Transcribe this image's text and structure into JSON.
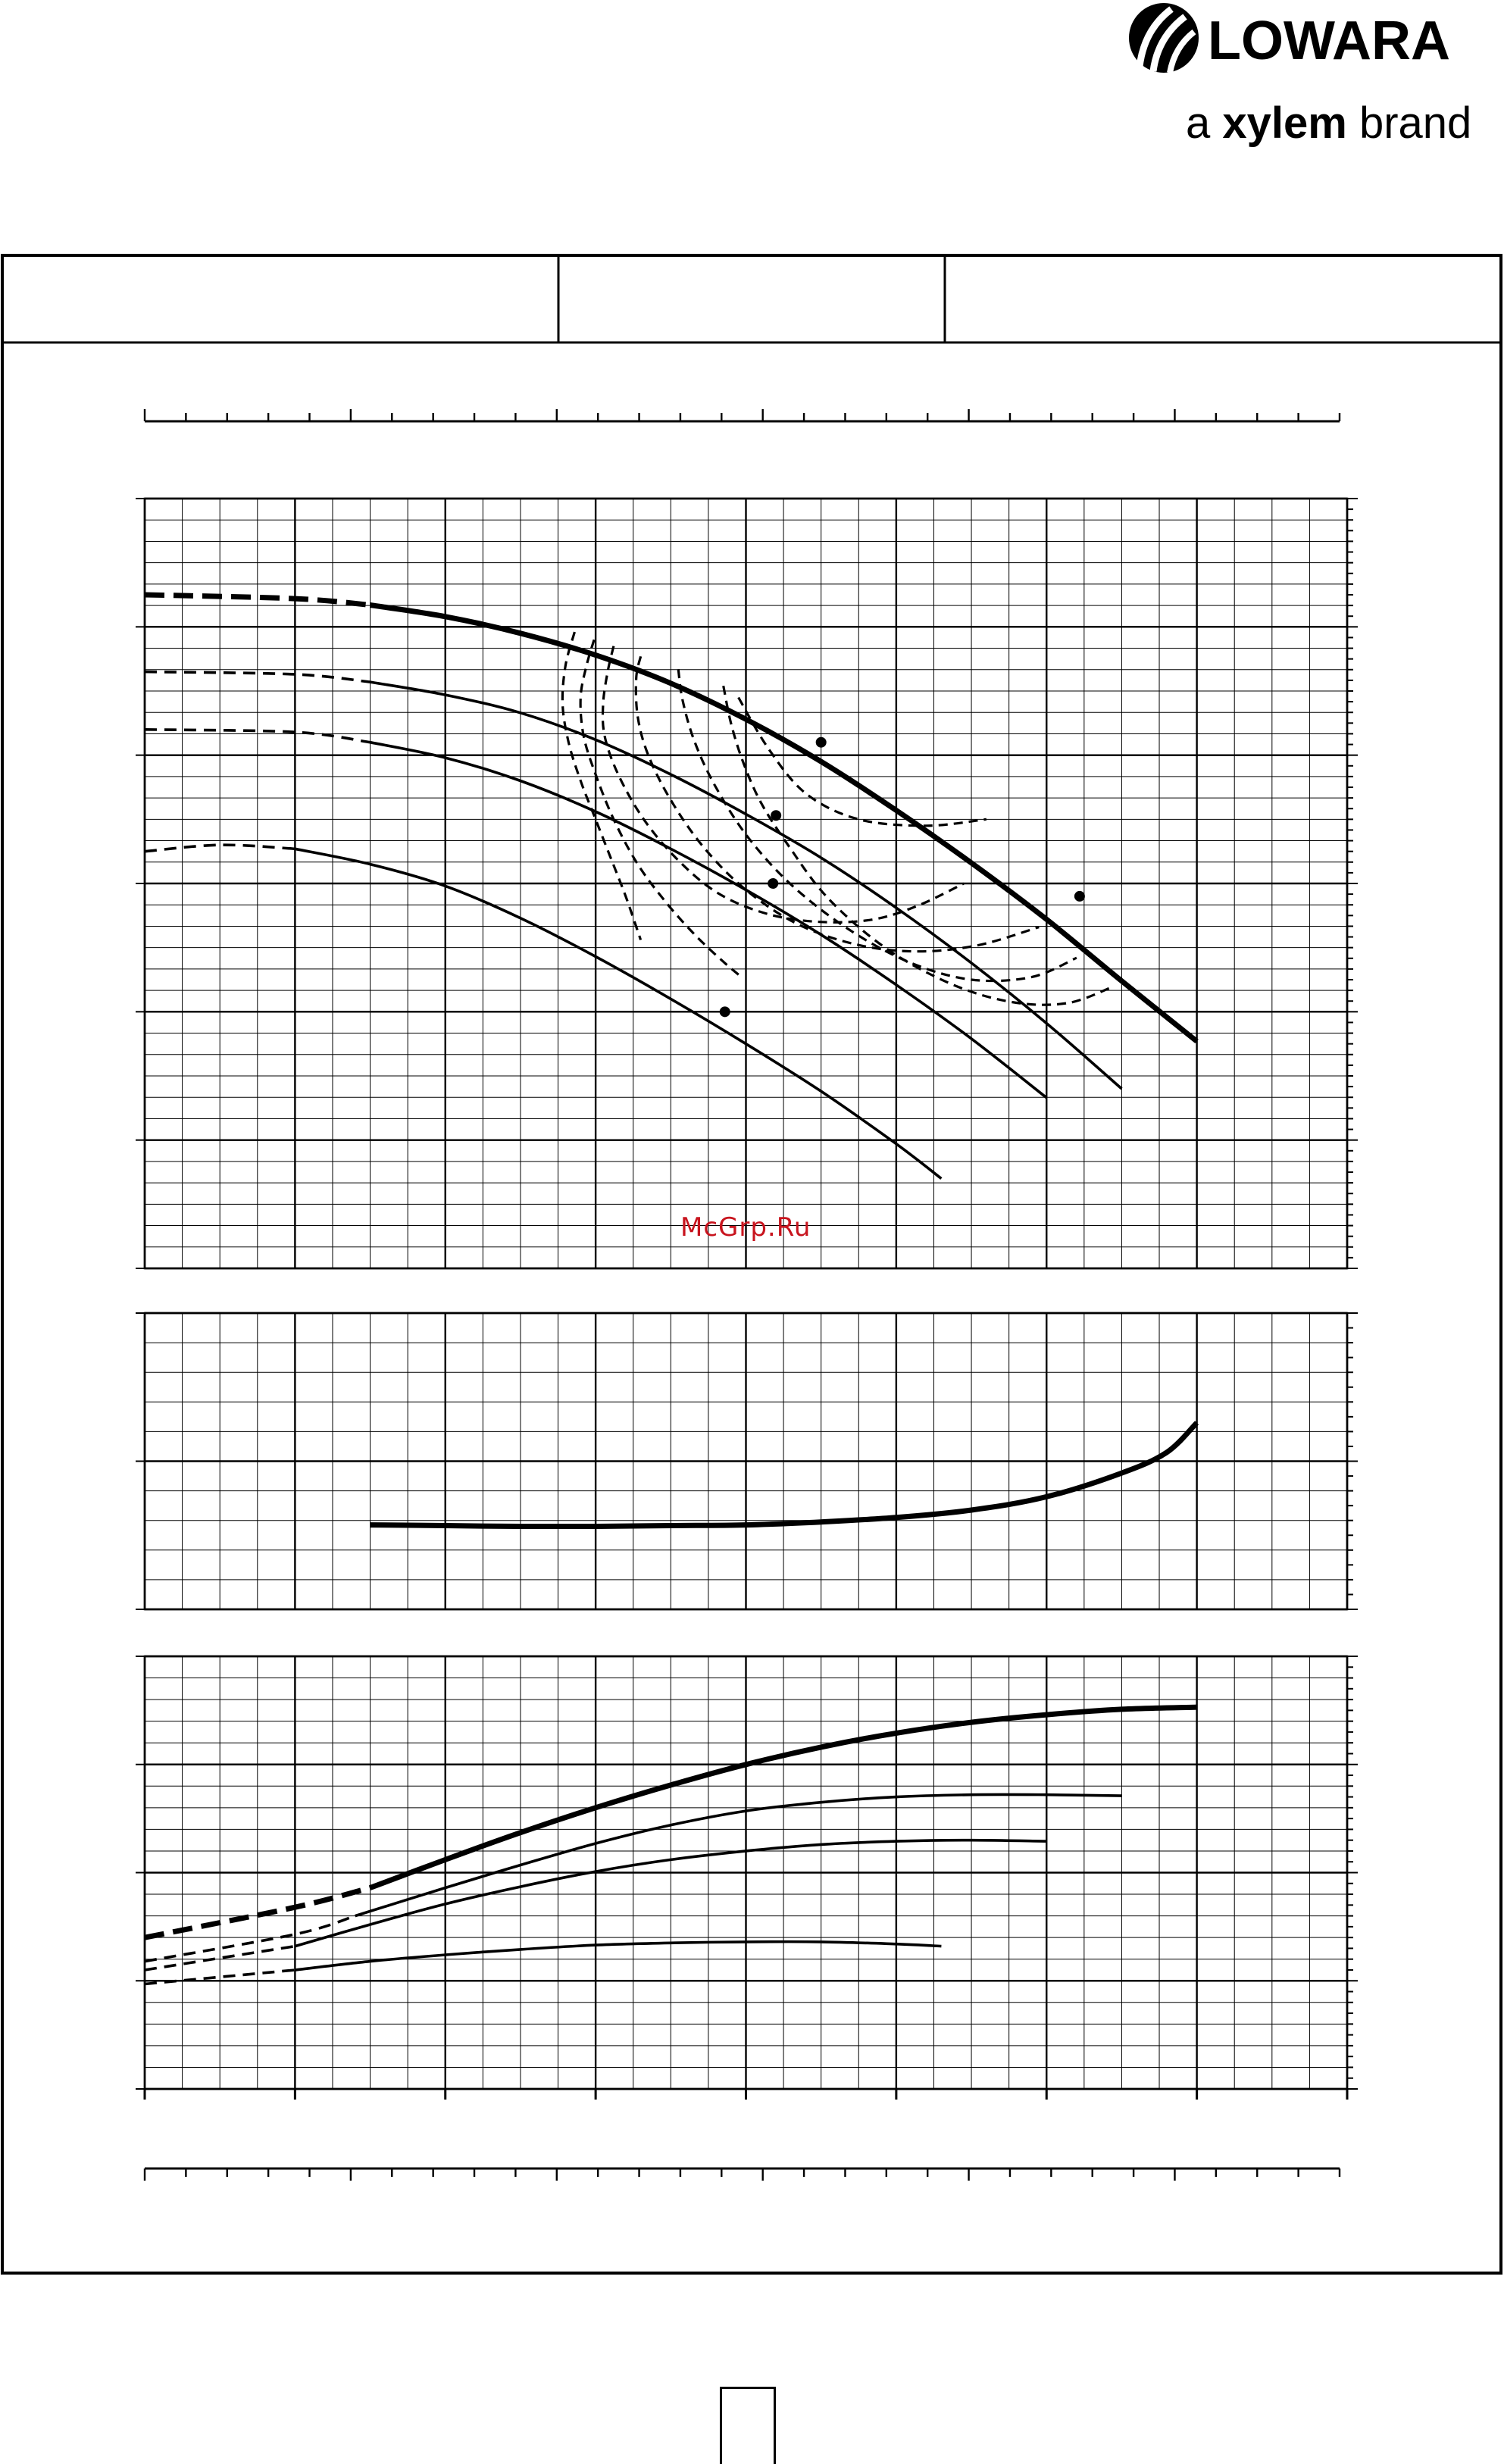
{
  "brand": {
    "name": "LOWARA",
    "tagline_pre": "a ",
    "tagline_bold": "xylem",
    "tagline_post": " brand"
  },
  "watermark": "McGrp.Ru",
  "page_number": "",
  "colors": {
    "ink": "#000000",
    "grid": "#000000",
    "watermark": "#c8141e"
  },
  "chart_data": [
    {
      "type": "line",
      "panel": "head",
      "title": "",
      "xlabel": "",
      "ylabel": "",
      "xlim": [
        0,
        8
      ],
      "ylim": [
        0,
        6
      ],
      "grid": true,
      "series": [
        {
          "style": "thick",
          "x": [
            0,
            1.0,
            1.5,
            2.0,
            2.5,
            3.0,
            3.5,
            4.0,
            4.5,
            5.0,
            5.5,
            6.0,
            6.5,
            7.0
          ],
          "y": [
            5.25,
            5.22,
            5.17,
            5.08,
            4.95,
            4.78,
            4.56,
            4.28,
            3.95,
            3.57,
            3.16,
            2.72,
            2.24,
            1.77
          ]
        },
        {
          "style": "thin",
          "x": [
            0,
            1.0,
            1.5,
            2.0,
            2.5,
            3.0,
            3.5,
            4.0,
            4.5,
            5.0,
            5.5,
            6.0,
            6.5
          ],
          "y": [
            4.65,
            4.63,
            4.57,
            4.47,
            4.33,
            4.12,
            3.85,
            3.54,
            3.2,
            2.81,
            2.38,
            1.91,
            1.4
          ]
        },
        {
          "style": "thin",
          "x": [
            0,
            1.0,
            1.5,
            2.0,
            2.5,
            3.0,
            3.5,
            4.0,
            4.5,
            5.0,
            5.5,
            6.0
          ],
          "y": [
            4.2,
            4.18,
            4.1,
            3.98,
            3.8,
            3.56,
            3.27,
            2.95,
            2.6,
            2.21,
            1.79,
            1.33
          ]
        },
        {
          "style": "thin",
          "x": [
            0,
            0.5,
            1.0,
            1.5,
            2.0,
            2.5,
            3.0,
            3.5,
            4.0,
            4.5,
            5.0,
            5.3
          ],
          "y": [
            3.25,
            3.3,
            3.27,
            3.15,
            2.98,
            2.73,
            2.43,
            2.1,
            1.75,
            1.38,
            0.97,
            0.7
          ]
        }
      ],
      "iso_efficiency_curves": [
        {
          "x": [
            2.86,
            2.8,
            2.78,
            2.82,
            2.9,
            3.0,
            3.1,
            3.2,
            3.3
          ],
          "y": [
            4.96,
            4.7,
            4.4,
            4.1,
            3.8,
            3.5,
            3.2,
            2.9,
            2.56
          ]
        },
        {
          "x": [
            2.99,
            2.94,
            2.9,
            2.92,
            3.0,
            3.12,
            3.28,
            3.47,
            3.66,
            3.84,
            3.96
          ],
          "y": [
            4.9,
            4.7,
            4.45,
            4.15,
            3.85,
            3.5,
            3.15,
            2.85,
            2.6,
            2.4,
            2.28
          ]
        },
        {
          "x": [
            3.12,
            3.08,
            3.05,
            3.06,
            3.15,
            3.32,
            3.55,
            3.82,
            4.15,
            4.5,
            4.85,
            5.15,
            5.45
          ],
          "y": [
            4.85,
            4.65,
            4.4,
            4.15,
            3.85,
            3.5,
            3.18,
            2.92,
            2.76,
            2.7,
            2.72,
            2.83,
            3.0
          ]
        },
        {
          "x": [
            3.3,
            3.27,
            3.28,
            3.35,
            3.5,
            3.72,
            4.0,
            4.35,
            4.75,
            5.15,
            5.55,
            5.95
          ],
          "y": [
            4.77,
            4.6,
            4.3,
            4.0,
            3.65,
            3.28,
            2.95,
            2.68,
            2.52,
            2.47,
            2.52,
            2.66
          ]
        },
        {
          "x": [
            3.55,
            3.58,
            3.66,
            3.8,
            4.02,
            4.32,
            4.7,
            5.1,
            5.5,
            5.9,
            6.2
          ],
          "y": [
            4.67,
            4.42,
            4.1,
            3.75,
            3.35,
            2.97,
            2.63,
            2.38,
            2.25,
            2.27,
            2.42
          ]
        },
        {
          "x": [
            3.85,
            3.9,
            3.98,
            4.1,
            4.28,
            4.55,
            4.95,
            5.4,
            5.8,
            6.15,
            6.45
          ],
          "y": [
            4.54,
            4.25,
            3.95,
            3.63,
            3.3,
            2.88,
            2.48,
            2.2,
            2.07,
            2.07,
            2.2
          ]
        },
        {
          "x": [
            3.95,
            4.15,
            4.4,
            4.75,
            5.2,
            5.6
          ],
          "y": [
            4.45,
            4.05,
            3.7,
            3.5,
            3.45,
            3.5
          ]
        }
      ],
      "best_efficiency_points": [
        {
          "x": 4.5,
          "y": 4.1
        },
        {
          "x": 4.2,
          "y": 3.53
        },
        {
          "x": 4.18,
          "y": 3.0
        },
        {
          "x": 3.86,
          "y": 2.0
        },
        {
          "x": 6.22,
          "y": 2.9
        }
      ]
    },
    {
      "type": "line",
      "panel": "npsh",
      "title": "",
      "xlabel": "",
      "ylabel": "",
      "xlim": [
        0,
        8
      ],
      "ylim": [
        0,
        2
      ],
      "grid": true,
      "series": [
        {
          "style": "thick",
          "x": [
            1.5,
            2.0,
            2.5,
            3.0,
            3.5,
            4.0,
            4.5,
            5.0,
            5.5,
            6.0,
            6.5,
            6.8,
            7.0
          ],
          "y": [
            0.57,
            0.565,
            0.56,
            0.56,
            0.565,
            0.57,
            0.59,
            0.62,
            0.67,
            0.76,
            0.92,
            1.06,
            1.26
          ]
        }
      ]
    },
    {
      "type": "line",
      "panel": "power",
      "title": "",
      "xlabel": "",
      "ylabel": "",
      "xlim": [
        0,
        8
      ],
      "ylim": [
        0,
        4
      ],
      "grid": true,
      "series": [
        {
          "style": "thick",
          "x": [
            0,
            1.0,
            1.5,
            2.0,
            2.5,
            3.0,
            3.5,
            4.0,
            4.5,
            5.0,
            5.5,
            6.0,
            6.5,
            7.0
          ],
          "y": [
            1.4,
            1.68,
            1.86,
            2.12,
            2.37,
            2.6,
            2.81,
            3.0,
            3.16,
            3.29,
            3.39,
            3.46,
            3.51,
            3.53
          ]
        },
        {
          "style": "thin",
          "x": [
            0,
            1.0,
            1.4,
            2.0,
            2.5,
            3.0,
            3.5,
            4.0,
            4.5,
            5.0,
            5.5,
            6.0,
            6.5
          ],
          "y": [
            1.18,
            1.43,
            1.6,
            1.86,
            2.07,
            2.27,
            2.44,
            2.57,
            2.65,
            2.7,
            2.72,
            2.72,
            2.71
          ]
        },
        {
          "style": "thin",
          "x": [
            0,
            1.0,
            1.5,
            2.0,
            2.5,
            3.0,
            3.5,
            4.0,
            4.5,
            5.0,
            5.5,
            6.0
          ],
          "y": [
            1.1,
            1.32,
            1.52,
            1.71,
            1.87,
            2.01,
            2.12,
            2.2,
            2.26,
            2.29,
            2.3,
            2.29
          ]
        },
        {
          "style": "thin",
          "x": [
            0,
            1.0,
            1.5,
            2.0,
            2.5,
            3.0,
            3.5,
            4.0,
            4.5,
            5.0,
            5.3
          ],
          "y": [
            0.97,
            1.1,
            1.18,
            1.24,
            1.29,
            1.33,
            1.35,
            1.36,
            1.36,
            1.34,
            1.32
          ]
        }
      ]
    }
  ]
}
